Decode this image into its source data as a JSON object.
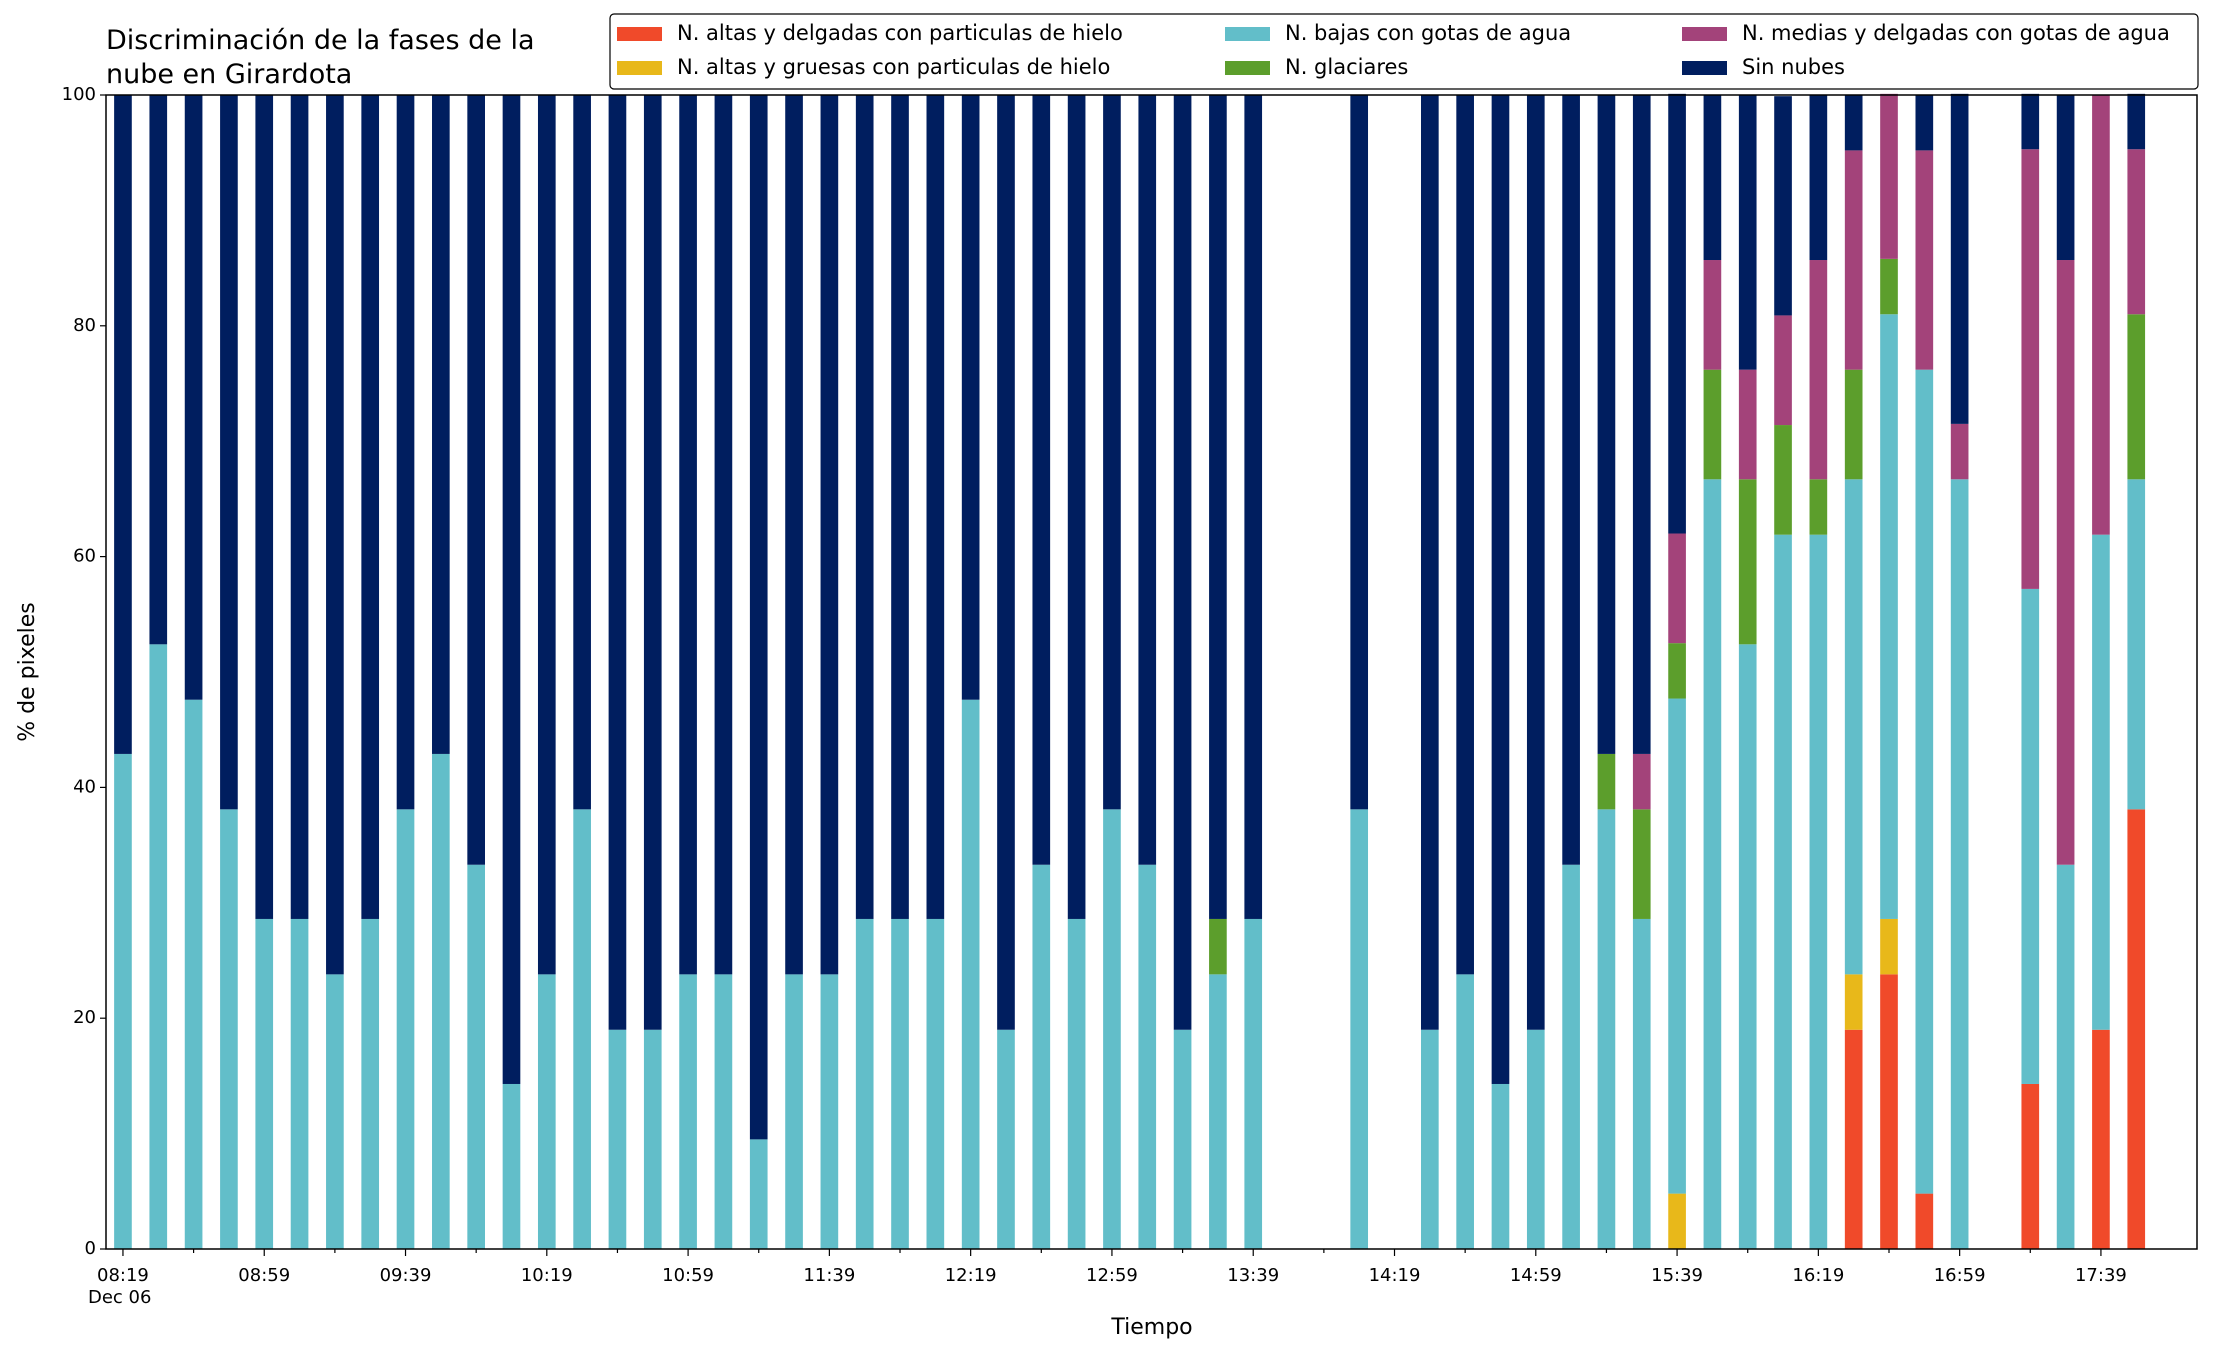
{
  "chart_data": {
    "type": "bar",
    "stacked": true,
    "title": "Discriminación de la fases de la nube en Girardota",
    "x_label": "Tiempo",
    "y_label": "% de pixeles",
    "date_label": "Dec 06",
    "categories": [
      "08:19",
      "08:29",
      "08:39",
      "08:49",
      "08:59",
      "09:09",
      "09:19",
      "09:29",
      "09:39",
      "09:49",
      "09:59",
      "10:09",
      "10:19",
      "10:29",
      "10:39",
      "10:49",
      "10:59",
      "11:09",
      "11:19",
      "11:29",
      "11:39",
      "11:49",
      "11:59",
      "12:09",
      "12:19",
      "12:29",
      "12:39",
      "12:49",
      "12:59",
      "13:09",
      "13:19",
      "13:29",
      "13:39",
      "13:49",
      "13:59",
      "14:09",
      "14:19",
      "14:29",
      "14:39",
      "14:49",
      "14:59",
      "15:09",
      "15:19",
      "15:29",
      "15:39",
      "15:49",
      "15:59",
      "16:09",
      "16:19",
      "16:29",
      "16:39",
      "16:49",
      "16:59",
      "17:09",
      "17:19",
      "17:29",
      "17:39",
      "17:49"
    ],
    "ylim": [
      0,
      100
    ],
    "yticks": [
      0,
      20,
      40,
      60,
      80,
      100
    ],
    "grid": false,
    "legend": "upper right",
    "series": [
      {
        "name": "N. altas y delgadas con particulas de hielo",
        "color": "#f04a2a",
        "values": [
          0,
          0,
          0,
          0,
          0,
          0,
          0,
          0,
          0,
          0,
          0,
          0,
          0,
          0,
          0,
          0,
          0,
          0,
          0,
          0,
          0,
          0,
          0,
          0,
          0,
          0,
          0,
          0,
          0,
          0,
          0,
          0,
          0,
          null,
          null,
          0,
          null,
          0,
          0,
          0,
          0,
          0,
          0,
          0,
          0,
          0,
          0,
          0,
          0,
          19.0,
          23.8,
          4.8,
          0,
          null,
          14.3,
          0,
          19.0,
          38.1
        ]
      },
      {
        "name": "N. altas y gruesas con particulas de hielo",
        "color": "#e8b81a",
        "values": [
          0,
          0,
          0,
          0,
          0,
          0,
          0,
          0,
          0,
          0,
          0,
          0,
          0,
          0,
          0,
          0,
          0,
          0,
          0,
          0,
          0,
          0,
          0,
          0,
          0,
          0,
          0,
          0,
          0,
          0,
          0,
          0,
          0,
          null,
          null,
          0,
          null,
          0,
          0,
          0,
          0,
          0,
          0,
          0,
          4.8,
          0,
          0,
          0,
          0,
          4.8,
          4.8,
          0,
          0,
          null,
          0,
          0,
          0,
          0
        ]
      },
      {
        "name": "N. bajas con gotas de agua",
        "color": "#62bec9",
        "values": [
          42.9,
          52.4,
          47.6,
          38.1,
          28.6,
          28.6,
          23.8,
          28.6,
          38.1,
          42.9,
          33.3,
          14.3,
          23.8,
          38.1,
          19.0,
          19.0,
          23.8,
          23.8,
          9.5,
          23.8,
          23.8,
          28.6,
          28.6,
          28.6,
          47.6,
          19.0,
          33.3,
          28.6,
          38.1,
          33.3,
          19.0,
          23.8,
          28.6,
          null,
          null,
          38.1,
          null,
          19.0,
          23.8,
          14.3,
          19.0,
          33.3,
          38.1,
          28.6,
          42.9,
          66.7,
          52.4,
          61.9,
          61.9,
          42.9,
          52.4,
          71.4,
          66.7,
          null,
          42.9,
          33.3,
          42.9,
          28.6
        ]
      },
      {
        "name": "N. glaciares",
        "color": "#5c9e2c",
        "values": [
          0,
          0,
          0,
          0,
          0,
          0,
          0,
          0,
          0,
          0,
          0,
          0,
          0,
          0,
          0,
          0,
          0,
          0,
          0,
          0,
          0,
          0,
          0,
          0,
          0,
          0,
          0,
          0,
          0,
          0,
          0,
          4.8,
          0,
          null,
          null,
          0,
          null,
          0,
          0,
          0,
          0,
          0,
          4.8,
          9.5,
          4.8,
          9.5,
          14.3,
          9.5,
          4.8,
          9.5,
          4.8,
          0,
          0,
          null,
          0,
          0,
          0,
          14.3
        ]
      },
      {
        "name": "N. medias y delgadas con gotas de agua",
        "color": "#a3437a",
        "values": [
          0,
          0,
          0,
          0,
          0,
          0,
          0,
          0,
          0,
          0,
          0,
          0,
          0,
          0,
          0,
          0,
          0,
          0,
          0,
          0,
          0,
          0,
          0,
          0,
          0,
          0,
          0,
          0,
          0,
          0,
          0,
          0,
          0,
          null,
          null,
          0,
          null,
          0,
          0,
          0,
          0,
          0,
          0,
          4.8,
          9.5,
          9.5,
          9.5,
          9.5,
          19.0,
          19.0,
          14.3,
          19.0,
          4.8,
          null,
          38.1,
          52.4,
          38.1,
          14.3
        ]
      },
      {
        "name": "Sin nubes",
        "color": "#001e5f",
        "values": [
          57.1,
          47.6,
          52.4,
          61.9,
          71.4,
          71.4,
          76.2,
          71.4,
          61.9,
          57.1,
          66.7,
          85.7,
          76.2,
          61.9,
          81.0,
          81.0,
          76.2,
          76.2,
          90.5,
          76.2,
          76.2,
          71.4,
          71.4,
          71.4,
          52.4,
          81.0,
          66.7,
          71.4,
          61.9,
          66.7,
          81.0,
          71.4,
          71.4,
          null,
          null,
          61.9,
          null,
          81.0,
          76.2,
          85.7,
          81.0,
          66.7,
          57.1,
          57.1,
          38.1,
          14.3,
          23.8,
          19.0,
          14.3,
          4.8,
          0,
          4.8,
          28.6,
          null,
          4.8,
          14.3,
          0,
          4.8
        ]
      }
    ]
  }
}
